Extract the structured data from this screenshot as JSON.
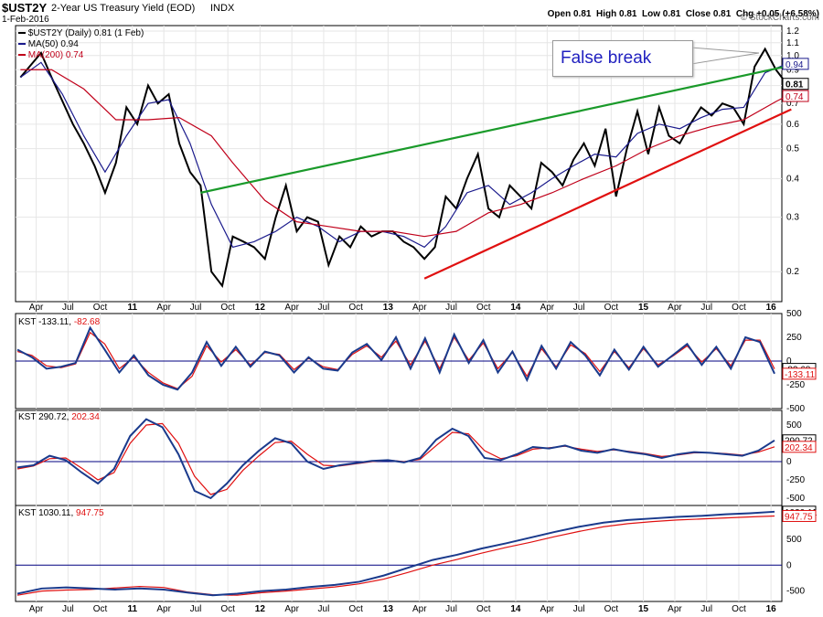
{
  "header": {
    "symbol": "$UST2Y",
    "name": "2-Year US Treasury Yield (EOD)",
    "exchange": "INDX",
    "date": "1-Feb-2016",
    "ohlc": "Open 0.81  High 0.81  Low 0.81  Close 0.81  Chg +0.05 (+6.58%)",
    "watermark": "© StockCharts.com",
    "ohlc_color": "#000000",
    "chg_color": "#000000"
  },
  "legend": {
    "price": "$UST2Y (Daily) 0.81 (1 Feb)",
    "ma50": "MA(50) 0.94",
    "ma200": "MA(200) 0.74"
  },
  "kst1": {
    "label": "KST",
    "a": "-133.11",
    "b": "-82.68"
  },
  "kst2": {
    "label": "KST",
    "a": "290.72",
    "b": "202.34"
  },
  "kst3": {
    "label": "KST",
    "a": "1030.11",
    "b": "947.75"
  },
  "annotation": "False break",
  "colors": {
    "price": "#000000",
    "ma50": "#1a1a8c",
    "ma200": "#c0001a",
    "trend_upper": "#1a9a2a",
    "trend_lower": "#e01010",
    "kst_fast": "#1a3a8c",
    "kst_slow": "#e01010",
    "zero": "#000080",
    "annotation": "#1f1fbf"
  },
  "chart_data": [
    {
      "type": "line",
      "title": "$UST2Y 2-Year US Treasury Yield (EOD)",
      "scale": "log",
      "ylim": [
        0.16,
        1.25
      ],
      "yticks": [
        "1.2",
        "1.1",
        "1.0",
        "0.9",
        "0.8",
        "0.7",
        "0.6",
        "0.5",
        "0.4",
        "0.3",
        "0.2"
      ],
      "last_tags": {
        "ma50": "0.94",
        "close": "0.81",
        "ma200": "0.74"
      },
      "xticks": [
        "Apr",
        "Jul",
        "Oct",
        "11",
        "Apr",
        "Jul",
        "Oct",
        "12",
        "Apr",
        "Jul",
        "Oct",
        "13",
        "Apr",
        "Jul",
        "Oct",
        "14",
        "Apr",
        "Jul",
        "Oct",
        "15",
        "Apr",
        "Jul",
        "Oct",
        "16"
      ],
      "x_start": "2010-02-01",
      "x_end": "2016-02-01",
      "series": [
        {
          "name": "$UST2Y (Daily)",
          "points": [
            [
              "2010-02",
              0.85
            ],
            [
              "2010-04",
              1.02
            ],
            [
              "2010-05",
              0.85
            ],
            [
              "2010-07",
              0.6
            ],
            [
              "2010-08",
              0.52
            ],
            [
              "2010-09",
              0.44
            ],
            [
              "2010-10",
              0.36
            ],
            [
              "2010-11",
              0.45
            ],
            [
              "2010-12",
              0.68
            ],
            [
              "2011-01",
              0.6
            ],
            [
              "2011-02",
              0.8
            ],
            [
              "2011-03",
              0.7
            ],
            [
              "2011-04",
              0.75
            ],
            [
              "2011-05",
              0.52
            ],
            [
              "2011-06",
              0.42
            ],
            [
              "2011-07",
              0.38
            ],
            [
              "2011-08",
              0.2
            ],
            [
              "2011-09",
              0.18
            ],
            [
              "2011-10",
              0.26
            ],
            [
              "2011-11",
              0.25
            ],
            [
              "2011-12",
              0.24
            ],
            [
              "2012-01",
              0.22
            ],
            [
              "2012-02",
              0.3
            ],
            [
              "2012-03",
              0.38
            ],
            [
              "2012-04",
              0.27
            ],
            [
              "2012-05",
              0.3
            ],
            [
              "2012-06",
              0.29
            ],
            [
              "2012-07",
              0.21
            ],
            [
              "2012-08",
              0.26
            ],
            [
              "2012-09",
              0.24
            ],
            [
              "2012-10",
              0.28
            ],
            [
              "2012-11",
              0.26
            ],
            [
              "2012-12",
              0.27
            ],
            [
              "2013-01",
              0.27
            ],
            [
              "2013-02",
              0.25
            ],
            [
              "2013-03",
              0.24
            ],
            [
              "2013-04",
              0.22
            ],
            [
              "2013-05",
              0.24
            ],
            [
              "2013-06",
              0.35
            ],
            [
              "2013-07",
              0.32
            ],
            [
              "2013-08",
              0.4
            ],
            [
              "2013-09",
              0.48
            ],
            [
              "2013-10",
              0.32
            ],
            [
              "2013-11",
              0.3
            ],
            [
              "2013-12",
              0.38
            ],
            [
              "2014-01",
              0.35
            ],
            [
              "2014-02",
              0.32
            ],
            [
              "2014-03",
              0.45
            ],
            [
              "2014-04",
              0.42
            ],
            [
              "2014-05",
              0.38
            ],
            [
              "2014-06",
              0.46
            ],
            [
              "2014-07",
              0.52
            ],
            [
              "2014-08",
              0.44
            ],
            [
              "2014-09",
              0.58
            ],
            [
              "2014-10",
              0.35
            ],
            [
              "2014-11",
              0.5
            ],
            [
              "2014-12",
              0.66
            ],
            [
              "2015-01",
              0.48
            ],
            [
              "2015-02",
              0.68
            ],
            [
              "2015-03",
              0.55
            ],
            [
              "2015-04",
              0.52
            ],
            [
              "2015-05",
              0.6
            ],
            [
              "2015-06",
              0.68
            ],
            [
              "2015-07",
              0.64
            ],
            [
              "2015-08",
              0.7
            ],
            [
              "2015-09",
              0.68
            ],
            [
              "2015-10",
              0.6
            ],
            [
              "2015-11",
              0.92
            ],
            [
              "2015-12",
              1.05
            ],
            [
              "2016-01",
              0.9
            ],
            [
              "2016-02",
              0.81
            ]
          ]
        },
        {
          "name": "MA(50)",
          "points": [
            [
              "2010-02",
              0.85
            ],
            [
              "2010-04",
              0.95
            ],
            [
              "2010-06",
              0.75
            ],
            [
              "2010-08",
              0.55
            ],
            [
              "2010-10",
              0.42
            ],
            [
              "2010-12",
              0.55
            ],
            [
              "2011-02",
              0.7
            ],
            [
              "2011-04",
              0.72
            ],
            [
              "2011-06",
              0.52
            ],
            [
              "2011-08",
              0.33
            ],
            [
              "2011-10",
              0.24
            ],
            [
              "2011-12",
              0.25
            ],
            [
              "2012-02",
              0.27
            ],
            [
              "2012-04",
              0.3
            ],
            [
              "2012-06",
              0.28
            ],
            [
              "2012-08",
              0.25
            ],
            [
              "2012-10",
              0.27
            ],
            [
              "2012-12",
              0.27
            ],
            [
              "2013-02",
              0.26
            ],
            [
              "2013-04",
              0.24
            ],
            [
              "2013-06",
              0.28
            ],
            [
              "2013-08",
              0.36
            ],
            [
              "2013-10",
              0.38
            ],
            [
              "2013-12",
              0.33
            ],
            [
              "2014-02",
              0.36
            ],
            [
              "2014-04",
              0.4
            ],
            [
              "2014-06",
              0.44
            ],
            [
              "2014-08",
              0.48
            ],
            [
              "2014-10",
              0.47
            ],
            [
              "2014-12",
              0.56
            ],
            [
              "2015-02",
              0.6
            ],
            [
              "2015-04",
              0.58
            ],
            [
              "2015-06",
              0.63
            ],
            [
              "2015-08",
              0.67
            ],
            [
              "2015-10",
              0.68
            ],
            [
              "2015-12",
              0.88
            ],
            [
              "2016-02",
              0.94
            ]
          ]
        },
        {
          "name": "MA(200)",
          "points": [
            [
              "2010-02",
              0.9
            ],
            [
              "2010-05",
              0.9
            ],
            [
              "2010-08",
              0.78
            ],
            [
              "2010-11",
              0.62
            ],
            [
              "2011-02",
              0.62
            ],
            [
              "2011-05",
              0.63
            ],
            [
              "2011-08",
              0.55
            ],
            [
              "2011-10",
              0.45
            ],
            [
              "2012-01",
              0.34
            ],
            [
              "2012-04",
              0.29
            ],
            [
              "2012-07",
              0.28
            ],
            [
              "2012-10",
              0.27
            ],
            [
              "2013-01",
              0.27
            ],
            [
              "2013-04",
              0.26
            ],
            [
              "2013-07",
              0.27
            ],
            [
              "2013-10",
              0.31
            ],
            [
              "2014-01",
              0.33
            ],
            [
              "2014-04",
              0.36
            ],
            [
              "2014-07",
              0.4
            ],
            [
              "2014-10",
              0.44
            ],
            [
              "2015-01",
              0.5
            ],
            [
              "2015-04",
              0.55
            ],
            [
              "2015-07",
              0.59
            ],
            [
              "2015-10",
              0.62
            ],
            [
              "2016-01",
              0.71
            ],
            [
              "2016-02",
              0.74
            ]
          ]
        }
      ],
      "trendlines": [
        {
          "name": "upper",
          "from": [
            "2011-07",
            0.36
          ],
          "to": [
            "2016-02",
            0.93
          ]
        },
        {
          "name": "lower",
          "from": [
            "2013-04",
            0.19
          ],
          "to": [
            "2016-02",
            0.67
          ]
        }
      ]
    },
    {
      "type": "line",
      "title": "KST -133.11, -82.68",
      "ylim": [
        -500,
        500
      ],
      "yticks": [
        "500",
        "250",
        "0",
        "-250",
        "-500"
      ],
      "last_tags": [
        "-82.68",
        "-133.11"
      ],
      "series": [
        {
          "name": "KST",
          "values": [
            120,
            40,
            -80,
            -60,
            -20,
            350,
            120,
            -120,
            60,
            -150,
            -250,
            -300,
            -120,
            200,
            -50,
            150,
            -60,
            100,
            60,
            -120,
            40,
            -80,
            -100,
            90,
            180,
            10,
            250,
            -80,
            240,
            -120,
            280,
            -20,
            220,
            -120,
            100,
            -200,
            160,
            -80,
            200,
            60,
            -150,
            120,
            -90,
            150,
            -60,
            60,
            180,
            -40,
            150,
            -80,
            250,
            200,
            -133
          ]
        },
        {
          "name": "Signal",
          "values": [
            100,
            60,
            -50,
            -70,
            -30,
            300,
            180,
            -80,
            40,
            -120,
            -230,
            -290,
            -160,
            160,
            -10,
            120,
            -40,
            90,
            70,
            -90,
            30,
            -60,
            -90,
            70,
            160,
            40,
            210,
            -40,
            210,
            -80,
            250,
            10,
            190,
            -80,
            90,
            -160,
            130,
            -60,
            170,
            80,
            -110,
            100,
            -70,
            130,
            -40,
            50,
            160,
            -10,
            130,
            -50,
            220,
            220,
            -83
          ]
        }
      ]
    },
    {
      "type": "line",
      "title": "KST 290.72, 202.34",
      "ylim": [
        -600,
        700
      ],
      "yticks": [
        "500",
        "250",
        "0",
        "-250",
        "-500"
      ],
      "last_tags": [
        "290.72",
        "202.34"
      ],
      "series": [
        {
          "name": "KST",
          "values": [
            -80,
            -50,
            80,
            20,
            -150,
            -300,
            -100,
            350,
            580,
            470,
            100,
            -400,
            -500,
            -300,
            -50,
            150,
            320,
            250,
            0,
            -100,
            -50,
            -20,
            10,
            20,
            -10,
            50,
            300,
            450,
            350,
            50,
            20,
            100,
            200,
            180,
            220,
            150,
            120,
            170,
            130,
            100,
            50,
            100,
            130,
            120,
            100,
            80,
            150,
            290
          ]
        },
        {
          "name": "Signal",
          "values": [
            -100,
            -60,
            40,
            50,
            -90,
            -250,
            -150,
            250,
            500,
            520,
            250,
            -200,
            -450,
            -380,
            -120,
            80,
            260,
            280,
            100,
            -50,
            -60,
            -30,
            0,
            20,
            0,
            30,
            220,
            400,
            380,
            150,
            40,
            80,
            170,
            190,
            210,
            170,
            140,
            160,
            140,
            110,
            70,
            90,
            120,
            120,
            110,
            90,
            130,
            202
          ]
        }
      ]
    },
    {
      "type": "line",
      "title": "KST 1030.11, 947.75",
      "ylim": [
        -700,
        1150
      ],
      "yticks": [
        "500",
        "0",
        "-500"
      ],
      "last_tags": [
        "1030.11",
        "947.75"
      ],
      "series": [
        {
          "name": "KST",
          "values": [
            -550,
            -450,
            -430,
            -450,
            -470,
            -450,
            -470,
            -530,
            -580,
            -550,
            -500,
            -470,
            -420,
            -380,
            -320,
            -200,
            -50,
            100,
            200,
            320,
            420,
            530,
            640,
            740,
            820,
            870,
            900,
            930,
            950,
            980,
            1000,
            1030
          ]
        },
        {
          "name": "Signal",
          "values": [
            -580,
            -500,
            -480,
            -470,
            -440,
            -410,
            -430,
            -520,
            -570,
            -580,
            -530,
            -500,
            -460,
            -420,
            -360,
            -270,
            -140,
            0,
            110,
            230,
            340,
            440,
            550,
            650,
            740,
            800,
            840,
            870,
            890,
            910,
            930,
            948
          ]
        }
      ]
    }
  ]
}
